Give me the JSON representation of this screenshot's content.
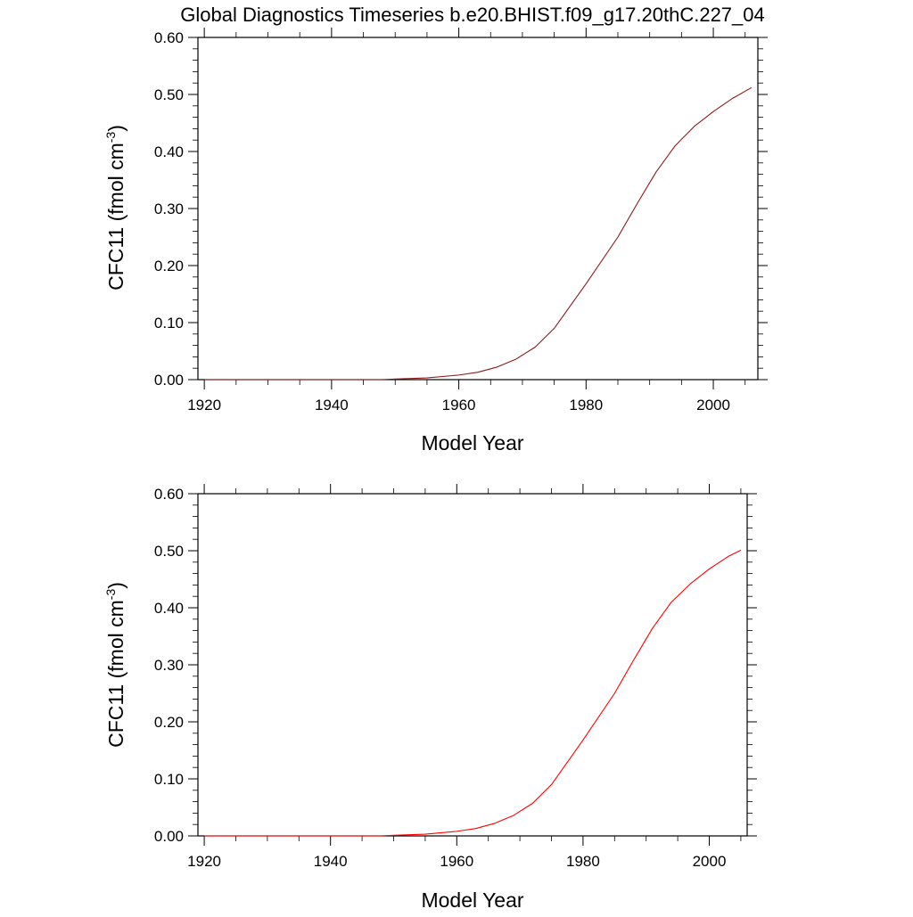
{
  "title": "Global Diagnostics Timeseries b.e20.BHIST.f09_g17.20thC.227_04",
  "chart_data": [
    {
      "type": "line",
      "xlabel": "Model Year",
      "ylabel": "CFC11 (fmol cm",
      "ylabel_sup": "-3",
      "ylabel_close": ")",
      "xlim": [
        1919,
        2007
      ],
      "ylim": [
        0,
        0.6
      ],
      "x_ticks": [
        1920,
        1940,
        1960,
        1980,
        2000
      ],
      "x_tick_labels": [
        "1920",
        "1940",
        "1960",
        "1980",
        "2000"
      ],
      "y_ticks": [
        0,
        0.1,
        0.2,
        0.3,
        0.4,
        0.5,
        0.6
      ],
      "y_tick_labels": [
        "0.00",
        "0.10",
        "0.20",
        "0.30",
        "0.40",
        "0.50",
        "0.60"
      ],
      "grid": false,
      "series": [
        {
          "name": "CFC11",
          "color": "#8b1a1a",
          "x": [
            1948,
            1950,
            1955,
            1960,
            1963,
            1966,
            1969,
            1972,
            1975,
            1980,
            1985,
            1988,
            1991,
            1994,
            1997,
            2000,
            2003,
            2006
          ],
          "y": [
            0.0,
            0.001,
            0.003,
            0.008,
            0.013,
            0.022,
            0.036,
            0.057,
            0.09,
            0.168,
            0.25,
            0.308,
            0.364,
            0.41,
            0.444,
            0.47,
            0.493,
            0.512
          ]
        }
      ]
    },
    {
      "type": "line",
      "xlabel": "Model Year",
      "ylabel": "CFC11 (fmol cm",
      "ylabel_sup": "-3",
      "ylabel_close": ")",
      "xlim": [
        1919,
        2006
      ],
      "ylim": [
        0,
        0.6
      ],
      "x_ticks": [
        1920,
        1940,
        1960,
        1980,
        2000
      ],
      "x_tick_labels": [
        "1920",
        "1940",
        "1960",
        "1980",
        "2000"
      ],
      "y_ticks": [
        0,
        0.1,
        0.2,
        0.3,
        0.4,
        0.5,
        0.6
      ],
      "y_tick_labels": [
        "0.00",
        "0.10",
        "0.20",
        "0.30",
        "0.40",
        "0.50",
        "0.60"
      ],
      "grid": false,
      "series": [
        {
          "name": "CFC11",
          "color": "#ff0000",
          "x": [
            1948,
            1950,
            1955,
            1960,
            1963,
            1966,
            1969,
            1972,
            1975,
            1980,
            1985,
            1988,
            1991,
            1994,
            1997,
            2000,
            2003,
            2005
          ],
          "y": [
            0.0,
            0.001,
            0.003,
            0.008,
            0.013,
            0.022,
            0.036,
            0.057,
            0.09,
            0.168,
            0.25,
            0.308,
            0.364,
            0.41,
            0.442,
            0.468,
            0.49,
            0.501
          ]
        }
      ]
    }
  ]
}
